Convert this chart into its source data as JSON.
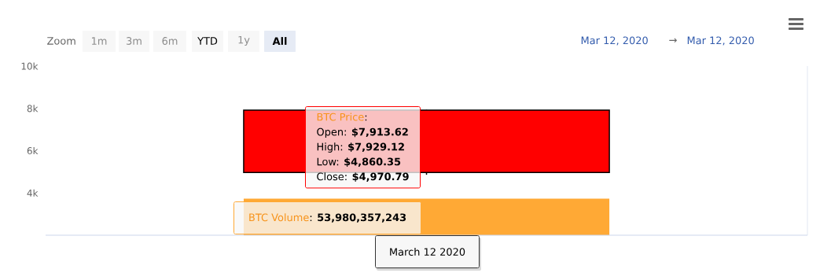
{
  "chart_data": {
    "type": "candlestick",
    "categories": [
      null
    ],
    "series": [
      {
        "name": "BTC Price",
        "type": "candlestick",
        "color": "#ff0000",
        "ohlc": [
          [
            7913.62,
            7929.12,
            4860.35,
            4970.79
          ]
        ]
      },
      {
        "name": "BTC Volume",
        "type": "bar",
        "axis": "y2",
        "color": "#ffa935",
        "values": [
          53980357243
        ],
        "value_labels": [
          "53,980,357,243"
        ]
      }
    ],
    "ylim": [
      2000,
      10000
    ],
    "yticks": [
      {
        "value": 4000,
        "label": "4k"
      },
      {
        "value": 6000,
        "label": "6k"
      },
      {
        "value": 8000,
        "label": "8k"
      },
      {
        "value": 10000,
        "label": "10k"
      }
    ],
    "y2lim": [
      0,
      250000000000
    ],
    "tick_labels": "y",
    "annotations": [
      "Zoom",
      "1m",
      "3m",
      "6m",
      "YTD",
      "1y",
      "All",
      "Mar 12, 2020",
      "→",
      "Mar 12, 2020",
      "Open: **$7,913.62**",
      "High: **$7,929.12**",
      "Low: **$4,860.35**",
      "Close: **$4,970.79**",
      "March 12 2020",
      ":",
      ":"
    ]
  }
}
